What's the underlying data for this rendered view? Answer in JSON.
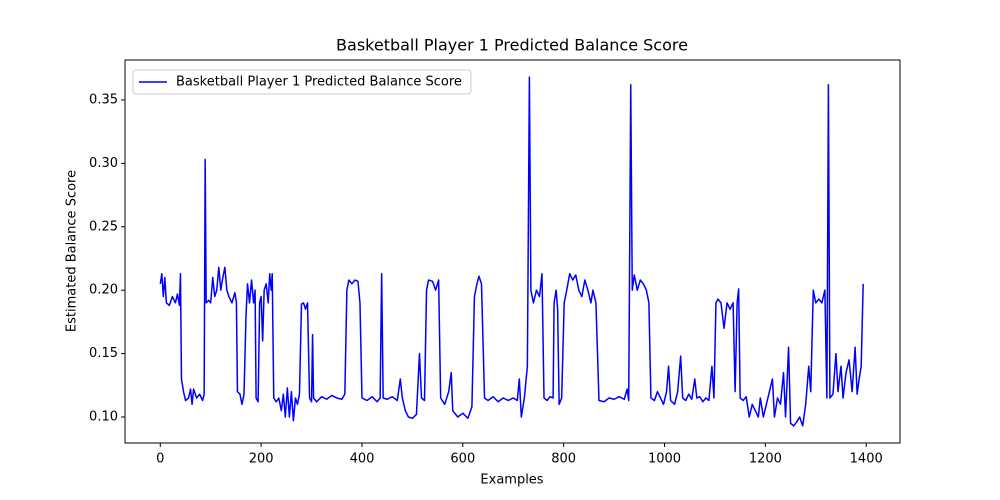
{
  "chart_data": {
    "type": "line",
    "title": "Basketball Player 1 Predicted Balance Score",
    "x_label": "Examples",
    "y_label": "Estimated Balance Score",
    "xlim": [
      -70,
      1467
    ],
    "ylim": [
      0.0795,
      0.3815
    ],
    "xticks": [
      0,
      200,
      400,
      600,
      800,
      1000,
      1200,
      1400
    ],
    "yticks": [
      {
        "value": 0.1,
        "label": "0.10"
      },
      0.15,
      {
        "value": 0.2,
        "label": "0.20"
      },
      0.25,
      {
        "value": 0.3,
        "label": "0.30"
      },
      0.35
    ],
    "legend": "upper left",
    "x": [
      0,
      3,
      6,
      9,
      12,
      18,
      24,
      30,
      34,
      38,
      40,
      42,
      46,
      50,
      56,
      60,
      63,
      66,
      72,
      78,
      84,
      87,
      89,
      91,
      96,
      100,
      104,
      108,
      112,
      116,
      120,
      124,
      128,
      132,
      136,
      142,
      148,
      151,
      153,
      158,
      162,
      166,
      170,
      173,
      177,
      181,
      185,
      188,
      190,
      194,
      197,
      200,
      203,
      206,
      210,
      214,
      217,
      220,
      222,
      225,
      230,
      235,
      240,
      244,
      248,
      252,
      256,
      260,
      264,
      268,
      272,
      276,
      280,
      284,
      288,
      292,
      296,
      300,
      302,
      304,
      310,
      320,
      330,
      340,
      350,
      360,
      366,
      370,
      374,
      380,
      386,
      392,
      396,
      400,
      410,
      420,
      430,
      436,
      439,
      442,
      450,
      460,
      470,
      476,
      480,
      486,
      492,
      500,
      508,
      514,
      518,
      524,
      528,
      532,
      540,
      546,
      552,
      556,
      564,
      572,
      577,
      580,
      590,
      600,
      610,
      618,
      623,
      628,
      632,
      637,
      643,
      650,
      660,
      670,
      680,
      690,
      700,
      708,
      712,
      716,
      722,
      728,
      732,
      735,
      740,
      746,
      752,
      757,
      761,
      767,
      773,
      779,
      781,
      785,
      788,
      791,
      796,
      801,
      806,
      812,
      818,
      824,
      830,
      836,
      842,
      848,
      854,
      858,
      864,
      870,
      880,
      890,
      900,
      910,
      920,
      926,
      929,
      933,
      936,
      940,
      946,
      952,
      958,
      964,
      969,
      973,
      980,
      986,
      992,
      998,
      1004,
      1008,
      1012,
      1020,
      1026,
      1032,
      1036,
      1042,
      1048,
      1054,
      1060,
      1064,
      1070,
      1076,
      1082,
      1088,
      1094,
      1098,
      1102,
      1106,
      1112,
      1118,
      1124,
      1130,
      1136,
      1140,
      1144,
      1147,
      1150,
      1156,
      1162,
      1168,
      1174,
      1180,
      1186,
      1190,
      1196,
      1202,
      1208,
      1214,
      1218,
      1224,
      1230,
      1236,
      1240,
      1246,
      1250,
      1256,
      1262,
      1268,
      1274,
      1280,
      1286,
      1290,
      1295,
      1300,
      1306,
      1312,
      1318,
      1322,
      1325,
      1328,
      1334,
      1340,
      1344,
      1350,
      1354,
      1360,
      1366,
      1372,
      1378,
      1382,
      1386,
      1390,
      1394
    ],
    "series": [
      {
        "name": "Basketball Player 1 Predicted Balance Score",
        "color": "#0000ff",
        "values": [
          0.205,
          0.213,
          0.195,
          0.21,
          0.19,
          0.188,
          0.195,
          0.19,
          0.197,
          0.188,
          0.213,
          0.13,
          0.12,
          0.113,
          0.115,
          0.122,
          0.11,
          0.122,
          0.115,
          0.118,
          0.113,
          0.118,
          0.303,
          0.19,
          0.192,
          0.19,
          0.21,
          0.195,
          0.2,
          0.218,
          0.2,
          0.21,
          0.218,
          0.2,
          0.195,
          0.19,
          0.198,
          0.19,
          0.12,
          0.118,
          0.11,
          0.118,
          0.18,
          0.205,
          0.19,
          0.208,
          0.19,
          0.2,
          0.115,
          0.112,
          0.19,
          0.195,
          0.16,
          0.2,
          0.205,
          0.19,
          0.213,
          0.2,
          0.213,
          0.115,
          0.112,
          0.115,
          0.105,
          0.118,
          0.1,
          0.123,
          0.1,
          0.12,
          0.097,
          0.115,
          0.11,
          0.118,
          0.189,
          0.19,
          0.185,
          0.19,
          0.115,
          0.112,
          0.165,
          0.115,
          0.112,
          0.116,
          0.114,
          0.117,
          0.115,
          0.114,
          0.118,
          0.2,
          0.208,
          0.205,
          0.208,
          0.207,
          0.19,
          0.115,
          0.113,
          0.116,
          0.112,
          0.115,
          0.213,
          0.115,
          0.114,
          0.116,
          0.113,
          0.13,
          0.115,
          0.105,
          0.1,
          0.099,
          0.102,
          0.15,
          0.115,
          0.113,
          0.2,
          0.208,
          0.207,
          0.2,
          0.208,
          0.115,
          0.11,
          0.12,
          0.135,
          0.105,
          0.1,
          0.103,
          0.099,
          0.108,
          0.195,
          0.205,
          0.211,
          0.205,
          0.115,
          0.113,
          0.116,
          0.112,
          0.115,
          0.113,
          0.115,
          0.113,
          0.13,
          0.1,
          0.115,
          0.14,
          0.368,
          0.2,
          0.19,
          0.2,
          0.195,
          0.213,
          0.115,
          0.113,
          0.116,
          0.115,
          0.19,
          0.2,
          0.185,
          0.11,
          0.115,
          0.19,
          0.2,
          0.213,
          0.208,
          0.212,
          0.2,
          0.195,
          0.208,
          0.2,
          0.19,
          0.2,
          0.19,
          0.113,
          0.112,
          0.115,
          0.114,
          0.116,
          0.114,
          0.122,
          0.113,
          0.362,
          0.2,
          0.212,
          0.2,
          0.208,
          0.205,
          0.2,
          0.19,
          0.115,
          0.113,
          0.12,
          0.115,
          0.11,
          0.12,
          0.14,
          0.113,
          0.11,
          0.12,
          0.148,
          0.115,
          0.113,
          0.118,
          0.114,
          0.13,
          0.115,
          0.116,
          0.112,
          0.115,
          0.113,
          0.14,
          0.115,
          0.19,
          0.193,
          0.19,
          0.17,
          0.19,
          0.185,
          0.19,
          0.12,
          0.19,
          0.201,
          0.115,
          0.113,
          0.116,
          0.1,
          0.11,
          0.105,
          0.1,
          0.115,
          0.1,
          0.11,
          0.12,
          0.13,
          0.1,
          0.115,
          0.11,
          0.135,
          0.1,
          0.155,
          0.095,
          0.093,
          0.096,
          0.1,
          0.093,
          0.11,
          0.14,
          0.12,
          0.2,
          0.19,
          0.193,
          0.19,
          0.2,
          0.115,
          0.362,
          0.115,
          0.118,
          0.15,
          0.12,
          0.14,
          0.115,
          0.135,
          0.145,
          0.12,
          0.155,
          0.118,
          0.13,
          0.14,
          0.205
        ]
      }
    ]
  }
}
